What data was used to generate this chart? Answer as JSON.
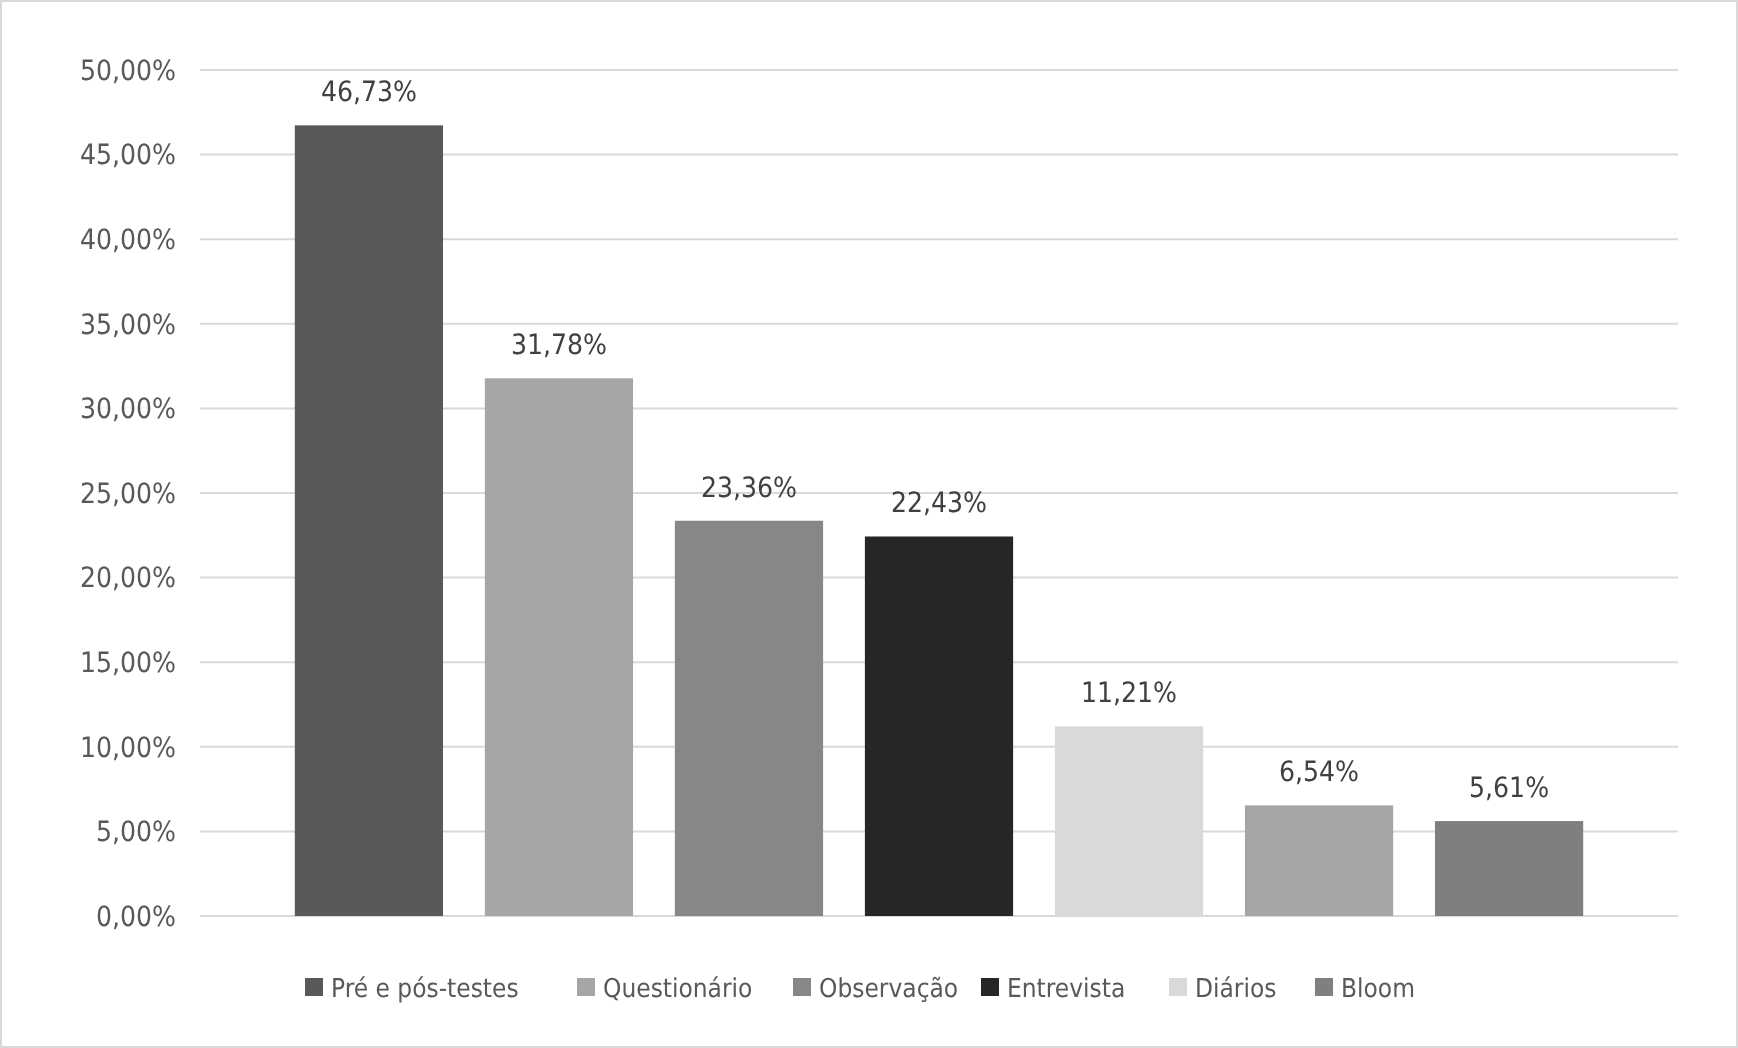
{
  "chart_data": {
    "type": "bar",
    "categories": [
      null
    ],
    "series": [
      {
        "name": "Pré e pós-testes",
        "color": "#595959",
        "values": [
          46.73
        ],
        "value_labels": [
          "46,73%"
        ]
      },
      {
        "name": "Questionário",
        "color": "#a6a6a6",
        "values": [
          31.78
        ],
        "value_labels": [
          "31,78%"
        ]
      },
      {
        "name": "Observação",
        "color": "#878787",
        "values": [
          23.36
        ],
        "value_labels": [
          "23,36%"
        ]
      },
      {
        "name": "Entrevista",
        "color": "#262626",
        "values": [
          22.43
        ],
        "value_labels": [
          "22,43%"
        ]
      },
      {
        "name": "Diários",
        "color": "#d9d9d9",
        "values": [
          11.21
        ],
        "value_labels": [
          "11,21%"
        ]
      },
      {
        "color": "#a5a5a5",
        "values": [
          6.54
        ],
        "value_labels": [
          "6,54%"
        ]
      },
      {
        "name": "Bloom",
        "color": "#7f7f7f",
        "values": [
          5.61
        ],
        "value_labels": [
          "5,61%"
        ]
      }
    ],
    "ylim": [
      0,
      50
    ],
    "yticks": [
      {
        "value": 0,
        "label": "0,00%"
      },
      {
        "value": 5,
        "label": "5,00%"
      },
      {
        "value": 10,
        "label": "10,00%"
      },
      {
        "value": 15,
        "label": "15,00%"
      },
      {
        "value": 20,
        "label": "20,00%"
      },
      {
        "value": 25,
        "label": "25,00%"
      },
      {
        "value": 30,
        "label": "30,00%"
      },
      {
        "value": 35,
        "label": "35,00%"
      },
      {
        "value": 40,
        "label": "40,00%"
      },
      {
        "value": 45,
        "label": "45,00%"
      },
      {
        "value": 50,
        "label": "50,00%"
      }
    ],
    "grid": "y",
    "legend": "bottom",
    "tick_labels": "y"
  }
}
